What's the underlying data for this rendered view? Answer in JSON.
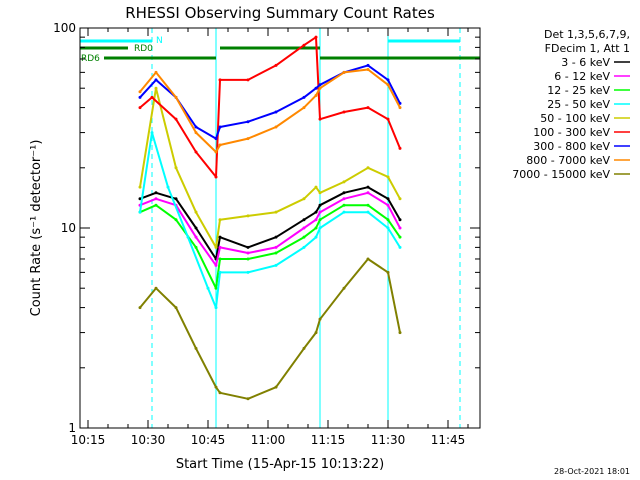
{
  "chart_data": {
    "type": "line",
    "title": "RHESSI Observing Summary Count Rates",
    "xlabel": "Start Time (15-Apr-15 10:13:22)",
    "ylabel": "Count Rate (s⁻¹ detector⁻¹)",
    "yscale": "log",
    "xlim": [
      "10:13",
      "11:53"
    ],
    "ylim": [
      1,
      100
    ],
    "x_ticks": [
      "10:15",
      "10:30",
      "10:45",
      "11:00",
      "11:15",
      "11:30",
      "11:45"
    ],
    "y_ticks": [
      "1",
      "10",
      "100"
    ],
    "legend_header": [
      "Det 1,3,5,6,7,9,",
      "FDecim 1, Att 1"
    ],
    "legend_position": "top-right",
    "footer_date": "28-Oct-2021 18:01",
    "series": [
      {
        "name": "3 - 6 keV",
        "color": "#000000",
        "x": [
          "10:28",
          "10:32",
          "10:37",
          "10:42",
          "10:47",
          "10:48",
          "10:55",
          "11:02",
          "11:09",
          "11:12",
          "11:13",
          "11:19",
          "11:25",
          "11:30",
          "11:33"
        ],
        "values": [
          14,
          15,
          14,
          10,
          7,
          9,
          8,
          9,
          11,
          12,
          13,
          15,
          16,
          14,
          11
        ]
      },
      {
        "name": "6 - 12 keV",
        "color": "#ff00ff",
        "x": [
          "10:28",
          "10:32",
          "10:37",
          "10:42",
          "10:47",
          "10:48",
          "10:55",
          "11:02",
          "11:09",
          "11:12",
          "11:13",
          "11:19",
          "11:25",
          "11:30",
          "11:33"
        ],
        "values": [
          13,
          14,
          13,
          9,
          6.5,
          8,
          7.5,
          8,
          10,
          11,
          12,
          14,
          15,
          13,
          10
        ]
      },
      {
        "name": "12 - 25 keV",
        "color": "#00ff00",
        "x": [
          "10:28",
          "10:32",
          "10:37",
          "10:42",
          "10:47",
          "10:48",
          "10:55",
          "11:02",
          "11:09",
          "11:12",
          "11:13",
          "11:19",
          "11:25",
          "11:30",
          "11:33"
        ],
        "values": [
          12,
          13,
          11,
          8,
          5,
          7,
          7,
          7.5,
          9,
          10,
          11,
          13,
          13,
          11,
          9
        ]
      },
      {
        "name": "25 - 50 keV",
        "color": "#00ffff",
        "x": [
          "10:28",
          "10:31",
          "10:35",
          "10:40",
          "10:45",
          "10:47",
          "10:48",
          "10:55",
          "11:02",
          "11:09",
          "11:12",
          "11:13",
          "11:19",
          "11:25",
          "11:30",
          "11:33"
        ],
        "values": [
          12,
          30,
          16,
          9,
          5,
          4,
          6,
          6,
          6.5,
          8,
          9,
          10,
          12,
          12,
          10,
          8
        ]
      },
      {
        "name": "50 - 100 keV",
        "color": "#cccc00",
        "x": [
          "10:28",
          "10:32",
          "10:37",
          "10:42",
          "10:47",
          "10:48",
          "10:55",
          "11:02",
          "11:09",
          "11:12",
          "11:13",
          "11:19",
          "11:25",
          "11:30",
          "11:33"
        ],
        "values": [
          16,
          50,
          20,
          12,
          8,
          11,
          11.5,
          12,
          14,
          16,
          15,
          17,
          20,
          18,
          14
        ]
      },
      {
        "name": "100 - 300 keV",
        "color": "#ff0000",
        "x": [
          "10:28",
          "10:31",
          "10:37",
          "10:42",
          "10:47",
          "10:48",
          "10:55",
          "11:02",
          "11:09",
          "11:12",
          "11:13",
          "11:19",
          "11:25",
          "11:30",
          "11:33"
        ],
        "values": [
          40,
          45,
          35,
          24,
          18,
          55,
          55,
          65,
          82,
          90,
          35,
          38,
          40,
          35,
          25
        ]
      },
      {
        "name": "300 - 800 keV",
        "color": "#0000ff",
        "x": [
          "10:28",
          "10:32",
          "10:37",
          "10:42",
          "10:47",
          "10:48",
          "10:55",
          "11:02",
          "11:09",
          "11:12",
          "11:13",
          "11:19",
          "11:25",
          "11:30",
          "11:33"
        ],
        "values": [
          45,
          55,
          45,
          32,
          28,
          32,
          34,
          38,
          45,
          50,
          52,
          60,
          65,
          55,
          42
        ]
      },
      {
        "name": "800 - 7000 keV",
        "color": "#ff8800",
        "x": [
          "10:28",
          "10:32",
          "10:37",
          "10:42",
          "10:47",
          "10:48",
          "10:55",
          "11:02",
          "11:09",
          "11:12",
          "11:13",
          "11:19",
          "11:25",
          "11:30",
          "11:33"
        ],
        "values": [
          48,
          60,
          45,
          30,
          24,
          26,
          28,
          32,
          40,
          46,
          50,
          60,
          62,
          52,
          40
        ]
      },
      {
        "name": "7000 - 15000 keV",
        "color": "#808000",
        "x": [
          "10:28",
          "10:32",
          "10:37",
          "10:42",
          "10:47",
          "10:48",
          "10:55",
          "11:02",
          "11:09",
          "11:12",
          "11:13",
          "11:19",
          "11:25",
          "11:30",
          "11:33"
        ],
        "values": [
          4,
          5,
          4,
          2.5,
          1.6,
          1.5,
          1.4,
          1.6,
          2.5,
          3,
          3.5,
          5,
          7,
          6,
          3
        ]
      }
    ],
    "annotations": {
      "night_label": "N",
      "rd0_label": "RD0",
      "rd6_label": "RD6",
      "night_periods": [
        [
          "10:13",
          "10:31"
        ],
        [
          "11:30",
          "11:48"
        ]
      ],
      "rd0_segments": [
        [
          "10:13",
          "10:25"
        ]
      ],
      "rd6_segments": [
        [
          "10:19",
          "10:47"
        ],
        [
          "10:48",
          "11:13"
        ],
        [
          "11:13",
          "11:33"
        ],
        [
          "11:33",
          "11:53"
        ]
      ],
      "vertical_lines_solid": [
        "10:13",
        "10:47",
        "11:13",
        "11:30"
      ],
      "vertical_lines_dashed": [
        "10:31",
        "11:48"
      ],
      "annotation_colors": {
        "night": "#00ffff",
        "rd0": "#008000",
        "rd6": "#008000"
      }
    }
  }
}
